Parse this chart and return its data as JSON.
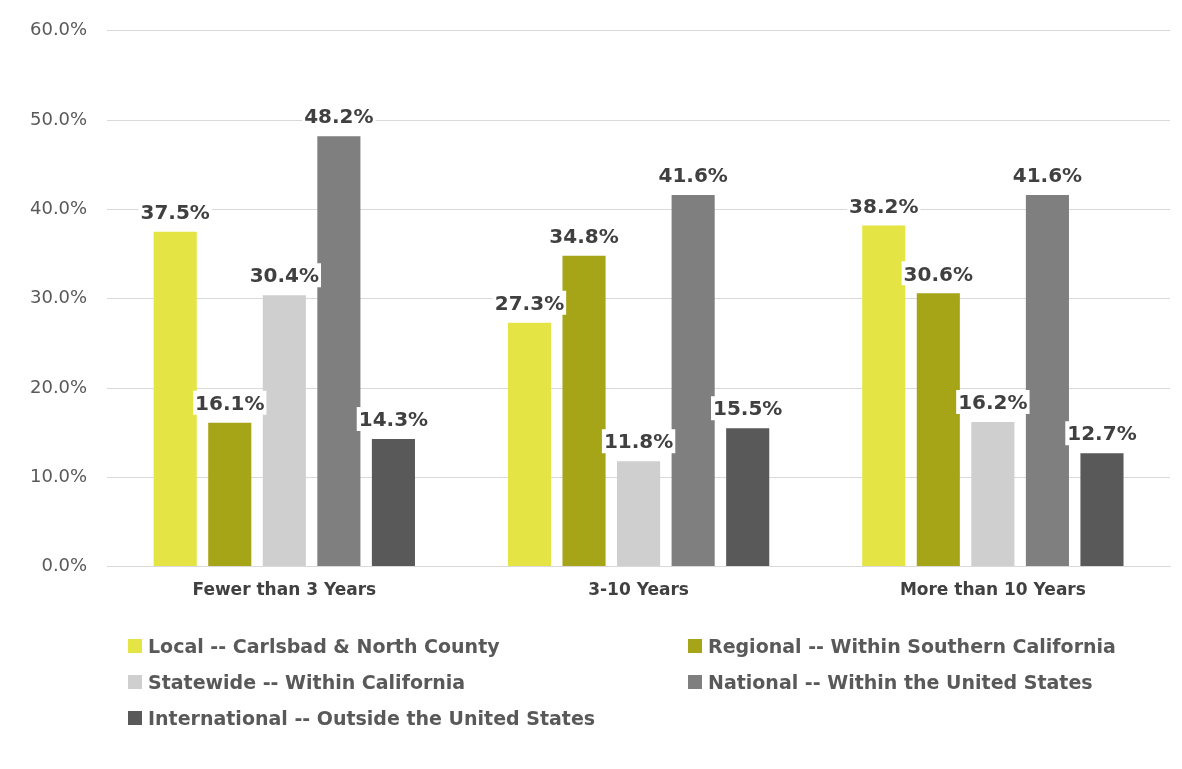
{
  "chart_data": {
    "type": "bar",
    "categories": [
      "Fewer than 3 Years",
      "3-10 Years",
      "More than 10 Years"
    ],
    "series": [
      {
        "name": "Local -- Carlsbad & North County",
        "color": "#e4e544",
        "values": [
          37.5,
          27.3,
          38.2
        ],
        "value_labels": [
          "37.5%",
          "27.3%",
          "38.2%"
        ]
      },
      {
        "name": "Regional -- Within Southern California",
        "color": "#a6a417",
        "values": [
          16.1,
          34.8,
          30.6
        ],
        "value_labels": [
          "16.1%",
          "34.8%",
          "30.6%"
        ]
      },
      {
        "name": "Statewide -- Within California",
        "color": "#d0cfcf",
        "values": [
          30.4,
          11.8,
          16.2
        ],
        "value_labels": [
          "30.4%",
          "11.8%",
          "16.2%"
        ]
      },
      {
        "name": "National -- Within the United States",
        "color": "#7f7f7f",
        "values": [
          48.2,
          41.6,
          41.6
        ],
        "value_labels": [
          "48.2%",
          "41.6%",
          "41.6%"
        ]
      },
      {
        "name": "International -- Outside the United States",
        "color": "#595959",
        "values": [
          14.3,
          15.5,
          12.7
        ],
        "value_labels": [
          "14.3%",
          "15.5%",
          "12.7%"
        ]
      }
    ],
    "ylim": [
      0,
      60
    ],
    "yticks": [
      {
        "value": 0,
        "label": "0.0%"
      },
      {
        "value": 10,
        "label": "10.0%"
      },
      {
        "value": 20,
        "label": "20.0%"
      },
      {
        "value": 30,
        "label": "30.0%"
      },
      {
        "value": 40,
        "label": "40.0%"
      },
      {
        "value": 50,
        "label": "50.0%"
      },
      {
        "value": 60,
        "label": "60.0%"
      }
    ],
    "grid": "y",
    "legend": "bottom"
  }
}
